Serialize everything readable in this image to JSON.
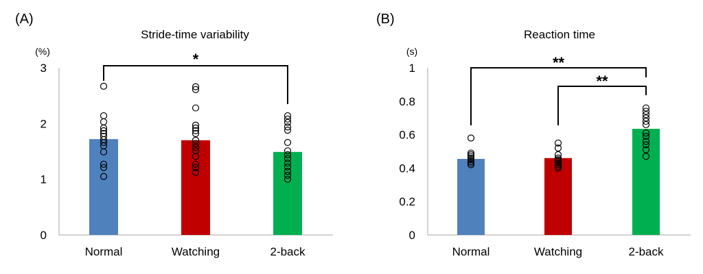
{
  "chart_data": [
    {
      "type": "bar",
      "panel_label": "(A)",
      "title": "Stride-time variability",
      "ylabel": "(%)",
      "xlabel": "",
      "ylim": [
        0,
        3
      ],
      "yticks": [
        "0",
        "1",
        "2",
        "3"
      ],
      "ytick_values": [
        0,
        1,
        2,
        3
      ],
      "categories": [
        "Normal",
        "Watching",
        "2-back"
      ],
      "values": [
        1.72,
        1.7,
        1.49
      ],
      "colors": [
        "#4f81bd",
        "#c00000",
        "#00b050"
      ],
      "points": [
        [
          2.67,
          2.14,
          2.03,
          1.92,
          1.87,
          1.82,
          1.77,
          1.71,
          1.66,
          1.6,
          1.49,
          1.27,
          1.21,
          1.05
        ],
        [
          2.66,
          2.61,
          2.28,
          1.97,
          1.92,
          1.87,
          1.82,
          1.7,
          1.64,
          1.57,
          1.51,
          1.41,
          1.27,
          1.21,
          1.12
        ],
        [
          2.14,
          2.08,
          2.02,
          1.94,
          1.88,
          1.66,
          1.51,
          1.44,
          1.37,
          1.29,
          1.22,
          1.14,
          1.07,
          1.0
        ]
      ],
      "significance": [
        {
          "from": 0,
          "to": 2,
          "label": "*",
          "level": 0
        }
      ],
      "grid": false,
      "legend": "none"
    },
    {
      "type": "bar",
      "panel_label": "(B)",
      "title": "Reaction time",
      "ylabel": "(s)",
      "xlabel": "",
      "ylim": [
        0,
        1
      ],
      "yticks": [
        "0",
        "0.2",
        "0.4",
        "0.6",
        "0.8",
        "1"
      ],
      "ytick_values": [
        0,
        0.2,
        0.4,
        0.6,
        0.8,
        1
      ],
      "categories": [
        "Normal",
        "Watching",
        "2-back"
      ],
      "values": [
        0.455,
        0.46,
        0.635
      ],
      "colors": [
        "#4f81bd",
        "#c00000",
        "#00b050"
      ],
      "points": [
        [
          0.58,
          0.49,
          0.48,
          0.47,
          0.46,
          0.45,
          0.44,
          0.43,
          0.42
        ],
        [
          0.55,
          0.52,
          0.48,
          0.46,
          0.45,
          0.44,
          0.43,
          0.42,
          0.41,
          0.4
        ],
        [
          0.76,
          0.74,
          0.72,
          0.7,
          0.68,
          0.66,
          0.61,
          0.59,
          0.56,
          0.54,
          0.51,
          0.47
        ]
      ],
      "significance": [
        {
          "from": 0,
          "to": 2,
          "label": "**",
          "level": 1
        },
        {
          "from": 1,
          "to": 2,
          "label": "**",
          "level": 0
        }
      ],
      "grid": false,
      "legend": "none"
    }
  ]
}
